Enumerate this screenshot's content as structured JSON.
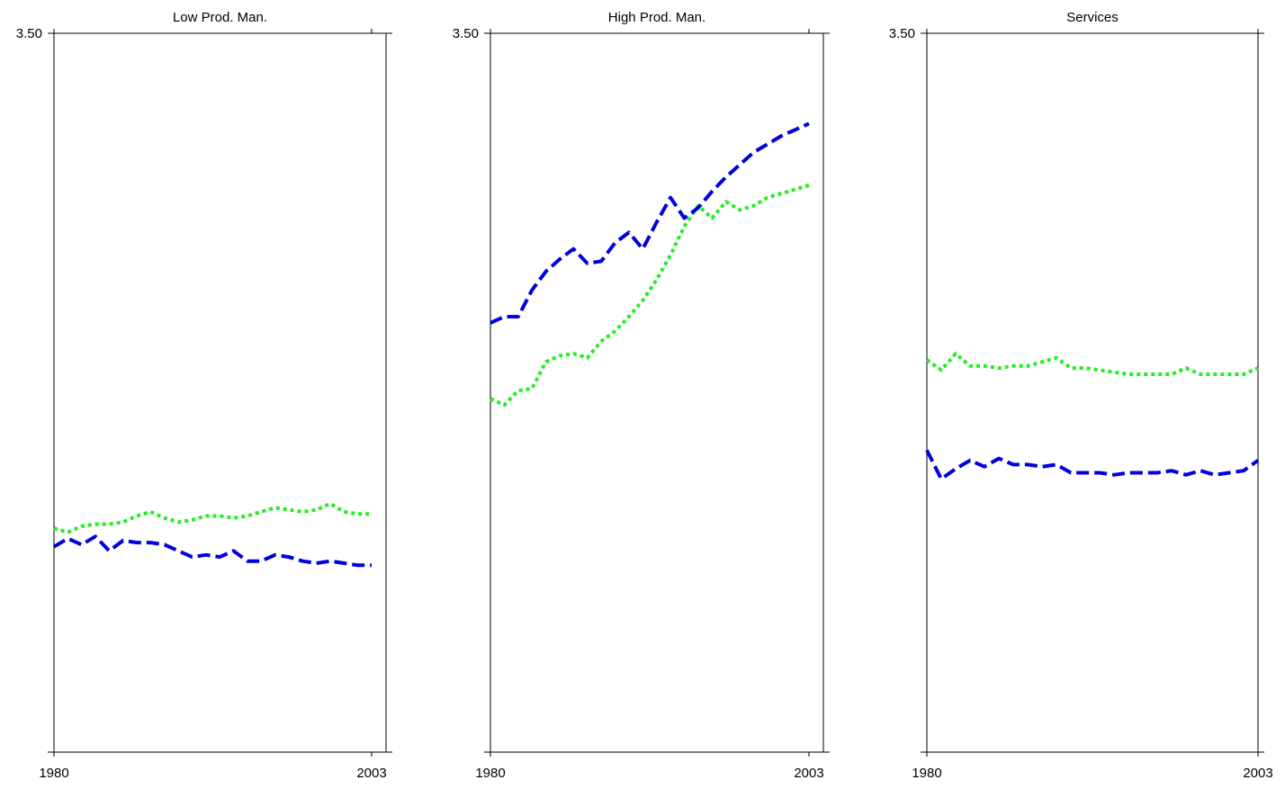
{
  "chart_data": [
    {
      "type": "line",
      "title": "Low Prod. Man.",
      "y_tick_label": "3.50",
      "xlim": [
        1980,
        2003
      ],
      "x_tick_labels": [
        "1980",
        "2003"
      ],
      "ylim": [
        0,
        3.5
      ],
      "grid": false,
      "series": [
        {
          "style": "dotted",
          "color": "#22ee22",
          "x": [
            1980,
            1981,
            1982,
            1983,
            1984,
            1985,
            1986,
            1987,
            1988,
            1989,
            1990,
            1991,
            1992,
            1993,
            1994,
            1995,
            1996,
            1997,
            1998,
            1999,
            2000,
            2001,
            2002,
            2003
          ],
          "y": [
            1.09,
            1.07,
            1.1,
            1.11,
            1.11,
            1.12,
            1.15,
            1.17,
            1.14,
            1.12,
            1.13,
            1.15,
            1.15,
            1.14,
            1.15,
            1.17,
            1.19,
            1.18,
            1.17,
            1.18,
            1.21,
            1.17,
            1.16,
            1.16
          ]
        },
        {
          "style": "dashed",
          "color": "#0000dd",
          "x": [
            1980,
            1981,
            1982,
            1983,
            1984,
            1985,
            1986,
            1987,
            1988,
            1989,
            1990,
            1991,
            1992,
            1993,
            1994,
            1995,
            1996,
            1997,
            1998,
            1999,
            2000,
            2001,
            2002,
            2003
          ],
          "y": [
            1.0,
            1.04,
            1.01,
            1.05,
            0.98,
            1.03,
            1.02,
            1.02,
            1.01,
            0.98,
            0.95,
            0.96,
            0.95,
            0.98,
            0.93,
            0.93,
            0.96,
            0.95,
            0.93,
            0.92,
            0.93,
            0.92,
            0.91,
            0.91
          ]
        }
      ]
    },
    {
      "type": "line",
      "title": "High Prod. Man.",
      "y_tick_label": "3.50",
      "xlim": [
        1980,
        2003
      ],
      "x_tick_labels": [
        "1980",
        "2003"
      ],
      "ylim": [
        0,
        3.5
      ],
      "grid": false,
      "series": [
        {
          "style": "dotted",
          "color": "#22ee22",
          "x": [
            1980,
            1981,
            1982,
            1983,
            1984,
            1985,
            1986,
            1987,
            1988,
            1989,
            1990,
            1991,
            1992,
            1993,
            1994,
            1995,
            1996,
            1997,
            1998,
            1999,
            2000,
            2001,
            2002,
            2003
          ],
          "y": [
            1.72,
            1.69,
            1.76,
            1.77,
            1.9,
            1.93,
            1.94,
            1.92,
            2.0,
            2.05,
            2.12,
            2.2,
            2.3,
            2.42,
            2.56,
            2.66,
            2.6,
            2.68,
            2.64,
            2.66,
            2.7,
            2.72,
            2.74,
            2.76
          ],
          "x_dense": [
            1980,
            1981,
            1982,
            1983,
            1984,
            1985,
            1986,
            1987,
            1988,
            1989,
            1990,
            1991,
            1992,
            1993,
            1994,
            1995,
            1996,
            1997,
            1998,
            1999,
            2000,
            2001,
            2002,
            2003
          ]
        },
        {
          "style": "dashed",
          "color": "#0000dd",
          "x": [
            1980,
            1981,
            1982,
            1983,
            1984,
            1985,
            1986,
            1987,
            1988,
            1989,
            1990,
            1991,
            1992,
            1993,
            1994,
            1995,
            1996,
            1997,
            1998,
            1999,
            2000,
            2001,
            2002,
            2003
          ],
          "y": [
            2.09,
            2.12,
            2.12,
            2.25,
            2.34,
            2.4,
            2.45,
            2.38,
            2.39,
            2.48,
            2.53,
            2.45,
            2.58,
            2.7,
            2.6,
            2.65,
            2.73,
            2.8,
            2.86,
            2.92,
            2.96,
            3.0,
            3.03,
            3.06
          ]
        }
      ]
    },
    {
      "type": "line",
      "title": "Services",
      "y_tick_label": "3.50",
      "xlim": [
        1980,
        2003
      ],
      "x_tick_labels": [
        "1980",
        "2003"
      ],
      "ylim": [
        0,
        3.5
      ],
      "grid": false,
      "series": [
        {
          "style": "dotted",
          "color": "#22ee22",
          "x": [
            1980,
            1981,
            1982,
            1983,
            1984,
            1985,
            1986,
            1987,
            1988,
            1989,
            1990,
            1991,
            1992,
            1993,
            1994,
            1995,
            1996,
            1997,
            1998,
            1999,
            2000,
            2001,
            2002,
            2003
          ],
          "y": [
            1.91,
            1.86,
            1.94,
            1.88,
            1.88,
            1.87,
            1.88,
            1.88,
            1.9,
            1.92,
            1.87,
            1.87,
            1.86,
            1.85,
            1.84,
            1.84,
            1.84,
            1.84,
            1.87,
            1.84,
            1.84,
            1.84,
            1.84,
            1.87
          ]
        },
        {
          "style": "dashed",
          "color": "#0000dd",
          "x": [
            1980,
            1981,
            1982,
            1983,
            1984,
            1985,
            1986,
            1987,
            1988,
            1989,
            1990,
            1991,
            1992,
            1993,
            1994,
            1995,
            1996,
            1997,
            1998,
            1999,
            2000,
            2001,
            2002,
            2003
          ],
          "y": [
            1.47,
            1.33,
            1.38,
            1.42,
            1.39,
            1.43,
            1.4,
            1.4,
            1.39,
            1.4,
            1.36,
            1.36,
            1.36,
            1.35,
            1.36,
            1.36,
            1.36,
            1.37,
            1.35,
            1.37,
            1.35,
            1.36,
            1.37,
            1.42
          ]
        }
      ]
    }
  ]
}
